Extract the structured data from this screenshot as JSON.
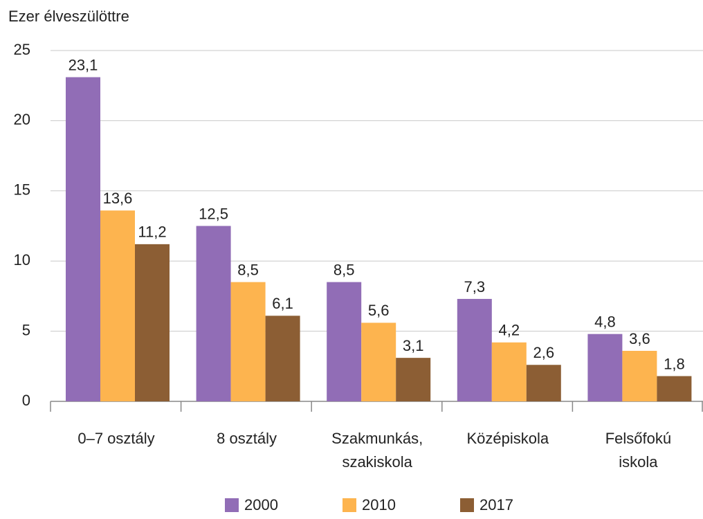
{
  "chart_data": {
    "type": "bar",
    "y_axis_label": "Ezer élveszülöttre",
    "categories": [
      "0–7 osztály",
      "8 osztály",
      "Szakmunkás,\nszakiskola",
      "Középiskola",
      "Felsőfokú\niskola"
    ],
    "series": [
      {
        "name": "2000",
        "color": "#916db6",
        "values": [
          23.1,
          12.5,
          8.5,
          7.3,
          4.8
        ],
        "value_labels": [
          "23,1",
          "12,5",
          "8,5",
          "7,3",
          "4,8"
        ]
      },
      {
        "name": "2010",
        "color": "#fdb44f",
        "values": [
          13.6,
          8.5,
          5.6,
          4.2,
          3.6
        ],
        "value_labels": [
          "13,6",
          "8,5",
          "5,6",
          "4,2",
          "3,6"
        ]
      },
      {
        "name": "2017",
        "color": "#8c5e34",
        "values": [
          11.2,
          6.1,
          3.1,
          2.6,
          1.8
        ],
        "value_labels": [
          "11,2",
          "6,1",
          "3,1",
          "2,6",
          "1,8"
        ]
      }
    ],
    "ylim": [
      0,
      25
    ],
    "yticks": [
      0,
      5,
      10,
      15,
      20,
      25
    ],
    "grid": true,
    "legend": "bottom"
  }
}
